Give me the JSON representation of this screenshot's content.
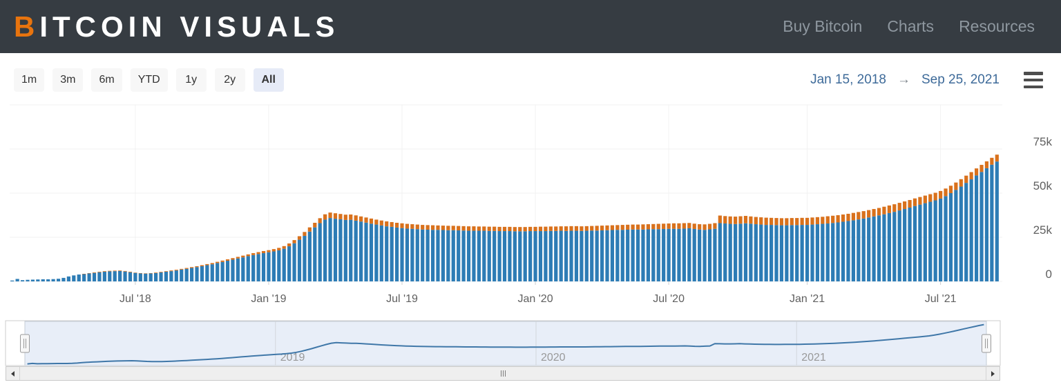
{
  "header": {
    "logo_first_letter": "B",
    "logo_rest": "ITCOIN VISUALS",
    "nav": [
      {
        "label": "Buy Bitcoin"
      },
      {
        "label": "Charts"
      },
      {
        "label": "Resources"
      }
    ]
  },
  "toolbar": {
    "ranges": [
      {
        "label": "1m",
        "selected": false
      },
      {
        "label": "3m",
        "selected": false
      },
      {
        "label": "6m",
        "selected": false
      },
      {
        "label": "YTD",
        "selected": false
      },
      {
        "label": "1y",
        "selected": false
      },
      {
        "label": "2y",
        "selected": false
      },
      {
        "label": "All",
        "selected": true
      }
    ],
    "date_from": "Jan 15, 2018",
    "arrow_glyph": "→",
    "date_to": "Sep 25, 2021"
  },
  "chart_data": {
    "type": "bar",
    "stacked": true,
    "interval": "weekly",
    "start_date": "Jan 15, 2018",
    "end_date": "Sep 25, 2021",
    "unit": "thousands",
    "ylim": [
      0,
      100
    ],
    "grid": true,
    "colors": {
      "base_segment": "#2d7cb5",
      "top_segment": "#d9711c"
    },
    "yticks": [
      {
        "label": "75k",
        "value": 75
      },
      {
        "label": "50k",
        "value": 50
      },
      {
        "label": "25k",
        "value": 25
      },
      {
        "label": "0",
        "value": 0
      }
    ],
    "xticks": [
      {
        "label": "Jul '18",
        "week": 24
      },
      {
        "label": "Jan '19",
        "week": 50
      },
      {
        "label": "Jul '19",
        "week": 76
      },
      {
        "label": "Jan '20",
        "week": 102
      },
      {
        "label": "Jul '20",
        "week": 128
      },
      {
        "label": "Jan '21",
        "week": 155
      },
      {
        "label": "Jul '21",
        "week": 181
      }
    ],
    "total_values_k": [
      0.5,
      1.4,
      0.7,
      0.9,
      1.0,
      1.1,
      1.2,
      1.2,
      1.3,
      1.5,
      2.0,
      2.8,
      3.4,
      3.9,
      4.3,
      4.7,
      5.1,
      5.5,
      5.8,
      6.0,
      6.1,
      6.2,
      5.9,
      5.5,
      5.0,
      4.7,
      4.6,
      4.7,
      5.0,
      5.4,
      5.8,
      6.2,
      6.6,
      7.1,
      7.6,
      8.1,
      8.6,
      9.2,
      9.8,
      10.4,
      11.1,
      11.8,
      12.5,
      13.2,
      13.9,
      14.6,
      15.3,
      16.0,
      16.6,
      17.2,
      17.7,
      18.3,
      19.0,
      20.0,
      21.5,
      23.4,
      25.6,
      28.0,
      30.6,
      33.2,
      35.8,
      38.0,
      39.0,
      38.6,
      38.2,
      37.8,
      37.9,
      37.4,
      36.8,
      36.2,
      35.6,
      35.0,
      34.5,
      34.0,
      33.6,
      33.2,
      32.9,
      32.6,
      32.4,
      32.2,
      32.0,
      31.9,
      31.8,
      31.7,
      31.6,
      31.5,
      31.5,
      31.4,
      31.3,
      31.2,
      31.2,
      31.1,
      31.1,
      31.0,
      31.0,
      30.9,
      30.9,
      30.9,
      30.8,
      30.8,
      30.8,
      30.9,
      30.9,
      31.0,
      31.0,
      31.1,
      31.1,
      31.2,
      31.2,
      31.3,
      31.3,
      31.2,
      31.3,
      31.4,
      31.5,
      31.6,
      31.7,
      31.8,
      31.9,
      32.0,
      32.1,
      32.2,
      32.2,
      32.3,
      32.4,
      32.5,
      32.6,
      32.7,
      32.8,
      32.9,
      32.9,
      33.0,
      33.1,
      32.7,
      32.4,
      32.3,
      32.6,
      33.0,
      37.3,
      37.0,
      36.8,
      36.7,
      36.9,
      37.1,
      36.8,
      36.5,
      36.3,
      36.1,
      36.0,
      35.9,
      35.8,
      35.8,
      35.9,
      35.9,
      36.0,
      36.0,
      36.2,
      36.4,
      36.6,
      36.9,
      37.2,
      37.5,
      37.9,
      38.3,
      38.8,
      39.3,
      39.8,
      40.4,
      41.0,
      41.6,
      42.3,
      43.0,
      43.7,
      44.5,
      45.3,
      46.1,
      47.0,
      47.8,
      48.6,
      49.4,
      50.2,
      51.2,
      52.6,
      54.2,
      56.0,
      57.9,
      59.9,
      61.9,
      64.0,
      66.0,
      68.0,
      70.0,
      71.8
    ],
    "orange_top_values_k": [
      0,
      0,
      0,
      0,
      0,
      0,
      0,
      0,
      0,
      0,
      0,
      0,
      0,
      0,
      0.2,
      0.2,
      0.3,
      0.3,
      0.3,
      0.3,
      0.3,
      0.3,
      0.3,
      0.3,
      0.2,
      0.2,
      0.2,
      0.2,
      0.3,
      0.3,
      0.3,
      0.4,
      0.4,
      0.4,
      0.5,
      0.5,
      0.5,
      0.6,
      0.6,
      0.7,
      0.7,
      0.8,
      0.8,
      0.9,
      0.9,
      1.0,
      1.0,
      1.1,
      1.1,
      1.2,
      1.2,
      1.3,
      1.4,
      1.5,
      1.6,
      1.8,
      2.0,
      2.2,
      2.4,
      2.6,
      2.8,
      3.0,
      3.1,
      3.1,
      3.0,
      3.0,
      3.0,
      3.0,
      2.9,
      2.9,
      2.9,
      2.8,
      2.8,
      2.8,
      2.7,
      2.7,
      2.7,
      2.7,
      2.6,
      2.6,
      2.6,
      2.6,
      2.6,
      2.5,
      2.5,
      2.5,
      2.5,
      2.5,
      2.5,
      2.5,
      2.5,
      2.4,
      2.4,
      2.4,
      2.4,
      2.4,
      2.4,
      2.4,
      2.4,
      2.4,
      2.4,
      2.4,
      2.4,
      2.5,
      2.5,
      2.5,
      2.5,
      2.5,
      2.6,
      2.6,
      2.6,
      2.6,
      2.6,
      2.6,
      2.7,
      2.7,
      2.7,
      2.7,
      2.7,
      2.8,
      2.8,
      2.8,
      2.8,
      2.9,
      2.9,
      2.9,
      3.0,
      3.0,
      3.0,
      3.1,
      3.1,
      3.1,
      3.0,
      3.0,
      3.0,
      3.1,
      3.1,
      3.2,
      4.3,
      4.2,
      4.2,
      4.2,
      4.2,
      4.2,
      4.1,
      4.1,
      4.1,
      4.1,
      4.0,
      4.0,
      4.0,
      4.0,
      4.0,
      4.0,
      4.0,
      4.0,
      4.0,
      4.0,
      4.0,
      4.1,
      4.1,
      4.1,
      4.1,
      4.1,
      4.2,
      4.2,
      4.2,
      4.2,
      4.2,
      4.2,
      4.3,
      4.3,
      4.3,
      4.3,
      4.3,
      4.3,
      4.3,
      4.3,
      4.3,
      4.3,
      4.3,
      4.3,
      4.3,
      4.2,
      4.2,
      4.2,
      4.1,
      4.1,
      4.0,
      4.0,
      3.9,
      3.9,
      3.9
    ]
  },
  "navigator": {
    "year_labels": [
      {
        "label": "2019",
        "week": 50.3
      },
      {
        "label": "2020",
        "week": 102.6
      },
      {
        "label": "2021",
        "week": 154.9
      }
    ]
  }
}
